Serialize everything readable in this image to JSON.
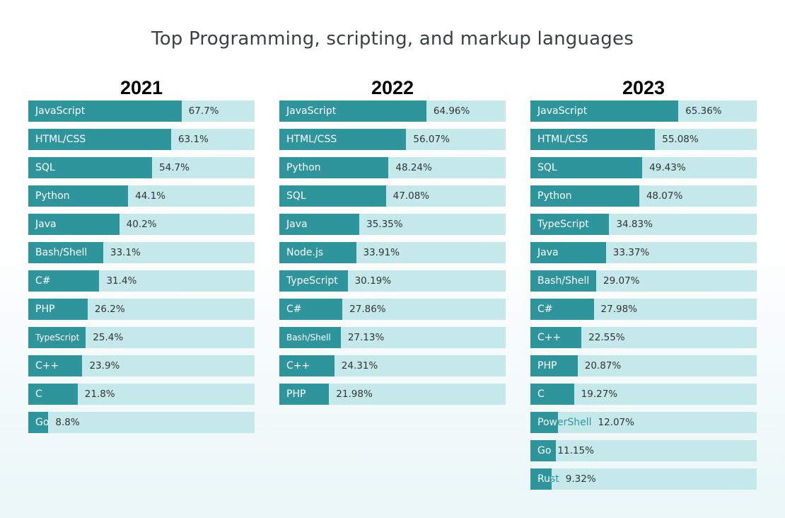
{
  "title": "Top Programming, scripting, and markup languages",
  "colors": {
    "bar": "#2e959c",
    "track": "#c5e9ea"
  },
  "chart_data": [
    {
      "type": "bar",
      "title": "2021",
      "unit": "%",
      "xlim": [
        0,
        100
      ],
      "categories": [
        "JavaScript",
        "HTML/CSS",
        "SQL",
        "Python",
        "Java",
        "Bash/Shell",
        "C#",
        "PHP",
        "TypeScript",
        "C++",
        "C",
        "Go"
      ],
      "values": [
        67.7,
        63.1,
        54.7,
        44.1,
        40.2,
        33.1,
        31.4,
        26.2,
        25.4,
        23.9,
        21.8,
        8.8
      ],
      "value_labels": [
        "67.7%",
        "63.1%",
        "54.7%",
        "44.1%",
        "40.2%",
        "33.1%",
        "31.4%",
        "26.2%",
        "25.4%",
        "23.9%",
        "21.8%",
        "8.8%"
      ]
    },
    {
      "type": "bar",
      "title": "2022",
      "unit": "%",
      "xlim": [
        0,
        100
      ],
      "categories": [
        "JavaScript",
        "HTML/CSS",
        "Python",
        "SQL",
        "Java",
        "Node.js",
        "TypeScript",
        "C#",
        "Bash/Shell",
        "C++",
        "PHP"
      ],
      "values": [
        64.96,
        56.07,
        48.24,
        47.08,
        35.35,
        33.91,
        30.19,
        27.86,
        27.13,
        24.31,
        21.98
      ],
      "value_labels": [
        "64.96%",
        "56.07%",
        "48.24%",
        "47.08%",
        "35.35%",
        "33.91%",
        "30.19%",
        "27.86%",
        "27.13%",
        "24.31%",
        "21.98%"
      ]
    },
    {
      "type": "bar",
      "title": "2023",
      "unit": "%",
      "xlim": [
        0,
        100
      ],
      "categories": [
        "JavaScript",
        "HTML/CSS",
        "SQL",
        "Python",
        "TypeScript",
        "Java",
        "Bash/Shell",
        "C#",
        "C++",
        "PHP",
        "C",
        "PowerShell",
        "Go",
        "Rust"
      ],
      "values": [
        65.36,
        55.08,
        49.43,
        48.07,
        34.83,
        33.37,
        29.07,
        27.98,
        22.55,
        20.87,
        19.27,
        12.07,
        11.15,
        9.32
      ],
      "value_labels": [
        "65.36%",
        "55.08%",
        "49.43%",
        "48.07%",
        "34.83%",
        "33.37%",
        "29.07%",
        "27.98%",
        "22.55%",
        "20.87%",
        "19.27%",
        "12.07%",
        "11.15%",
        "9.32%"
      ]
    }
  ]
}
